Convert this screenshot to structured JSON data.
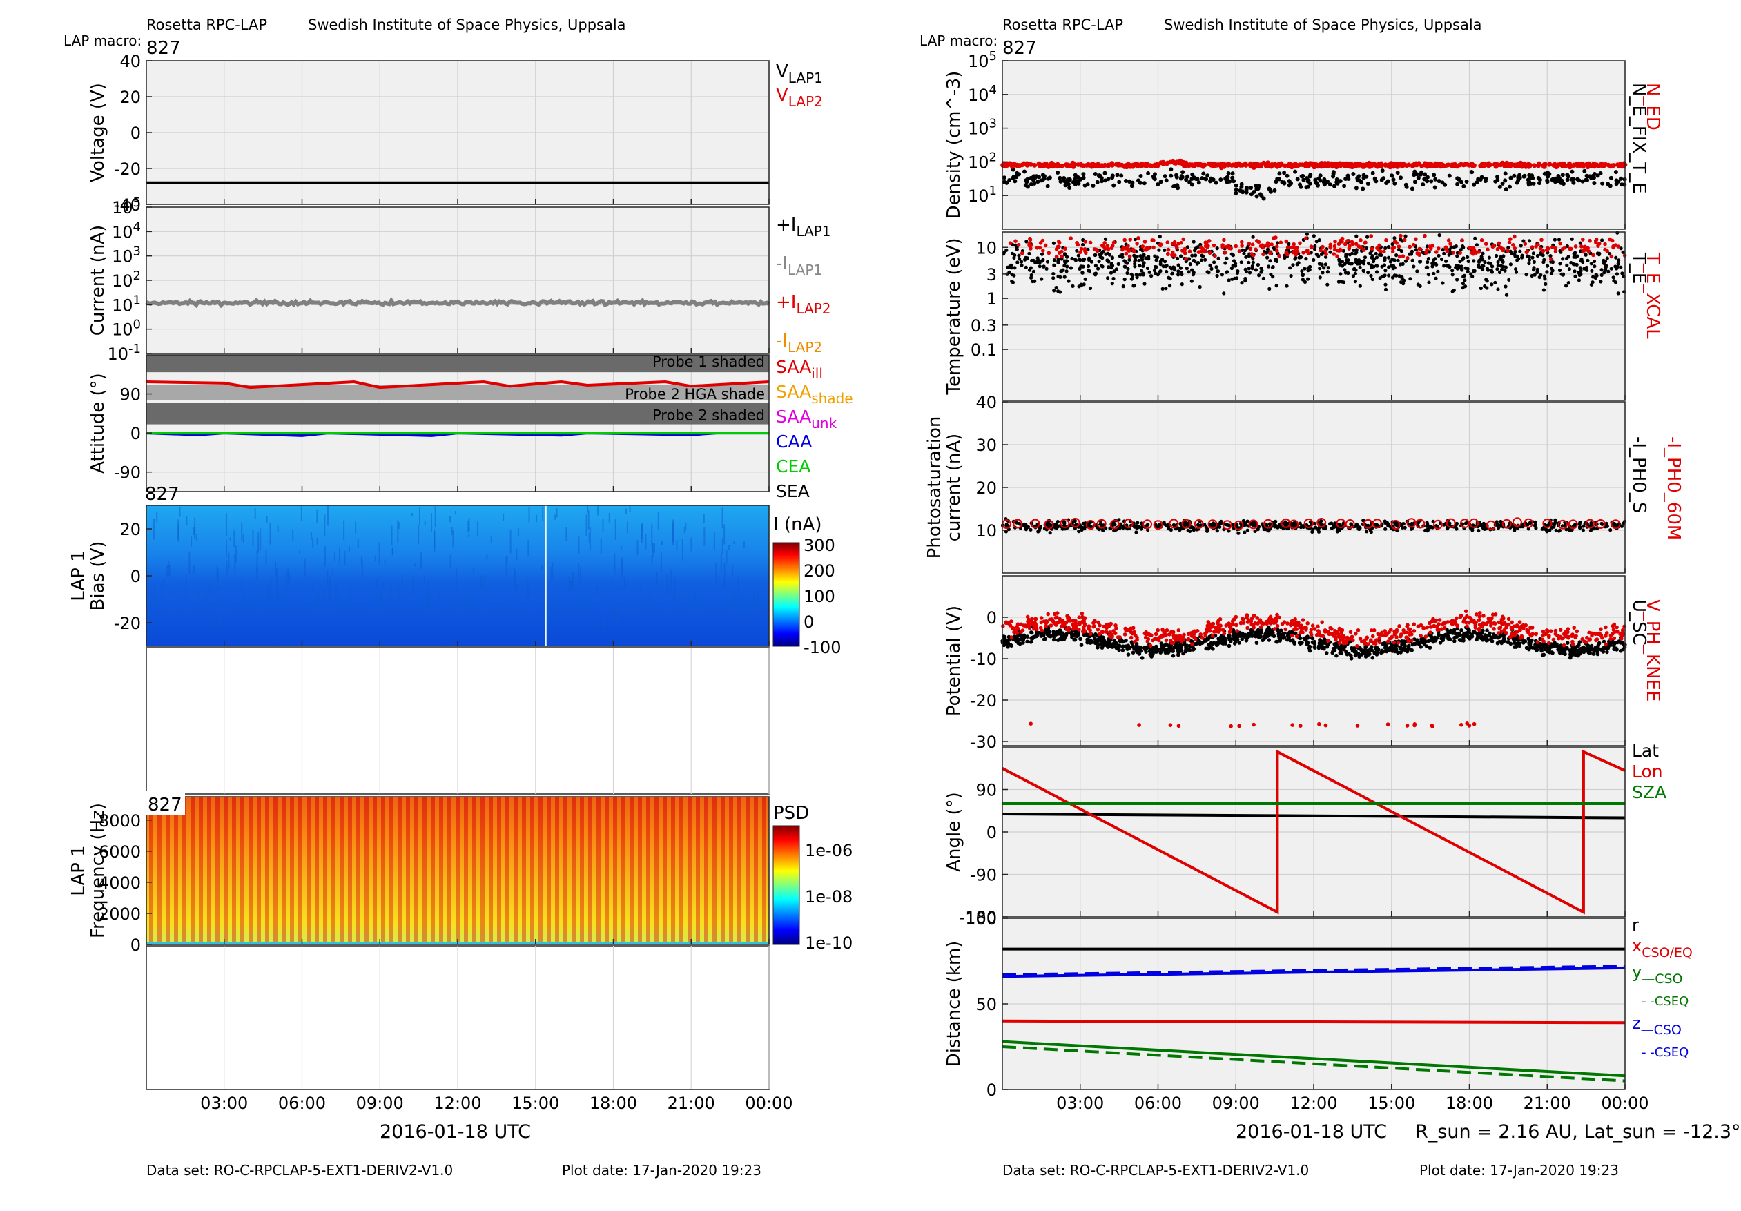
{
  "left": {
    "header": {
      "instrument": "Rosetta RPC-LAP",
      "institute": "Swedish Institute of Space Physics, Uppsala",
      "macro_label": "LAP macro:",
      "macro": "827"
    },
    "footer": {
      "dataset": "Data set: RO-C-RPCLAP-5-EXT1-DERIV2-V1.0",
      "plot_date": "Plot date: 17-Jan-2020 19:23"
    },
    "xlabel": "2016-01-18 UTC",
    "xticks": [
      "03:00",
      "06:00",
      "09:00",
      "12:00",
      "15:00",
      "18:00",
      "21:00",
      "00:00"
    ]
  },
  "right": {
    "header": {
      "instrument": "Rosetta RPC-LAP",
      "institute": "Swedish Institute of Space Physics, Uppsala",
      "macro_label": "LAP macro:",
      "macro": "827"
    },
    "footer": {
      "dataset": "Data set: RO-C-RPCLAP-5-EXT1-DERIV2-V1.0",
      "plot_date": "Plot date: 17-Jan-2020 19:23"
    },
    "xlabel": "2016-01-18 UTC",
    "xticks": [
      "03:00",
      "06:00",
      "09:00",
      "12:00",
      "15:00",
      "18:00",
      "21:00",
      "00:00"
    ],
    "rsun_note": "R_sun = 2.16 AU, Lat_sun = -12.3°"
  },
  "chart_data": [
    {
      "type": "line",
      "ylabel": "Voltage (V)",
      "ylim": [
        -40,
        40
      ],
      "yticks": [
        "40",
        "20",
        "0",
        "-20",
        "-40"
      ],
      "grid": true,
      "legend": [
        {
          "text": "V",
          "sub": "LAP1",
          "color": "#000000"
        },
        {
          "text": "V",
          "sub": "LAP2",
          "color": "#e00000"
        }
      ],
      "series": [
        {
          "name": "V_LAP1",
          "color": "#000000",
          "x_hours": [
            0,
            24
          ],
          "values": [
            -28,
            -28
          ]
        }
      ]
    },
    {
      "type": "line",
      "ylabel": "Current (nA)",
      "yscale": "log",
      "ylim": [
        0.1,
        100000
      ],
      "yticks": [
        "10^5",
        "10^4",
        "10^3",
        "10^2",
        "10^1",
        "10^0",
        "10^-1"
      ],
      "grid": true,
      "legend": [
        {
          "text": "+I",
          "sub": "LAP1",
          "color": "#000000"
        },
        {
          "text": "-I",
          "sub": "LAP1",
          "color": "#888888"
        },
        {
          "text": "+I",
          "sub": "LAP2",
          "color": "#e00000"
        },
        {
          "text": "-I",
          "sub": "LAP2",
          "color": "#f08c00"
        }
      ],
      "series": [
        {
          "name": "-I_LAP1",
          "color": "#808080",
          "x_hours": [
            0,
            6,
            12,
            18,
            24
          ],
          "values": [
            12,
            13,
            12,
            12,
            12
          ]
        }
      ]
    },
    {
      "type": "line",
      "ylabel": "Attitude (°)",
      "ylim": [
        -135,
        180
      ],
      "yticks": [
        "90",
        "0",
        "-90"
      ],
      "grid": true,
      "bands": [
        "Probe 1 shaded",
        "Probe 2 HGA shade",
        "Probe 2 shaded"
      ],
      "legend": [
        {
          "text": "SAA",
          "sub": "ill",
          "color": "#e00000"
        },
        {
          "text": "SAA",
          "sub": "shade",
          "color": "#f0a000"
        },
        {
          "text": "SAA",
          "sub": "unk",
          "color": "#e000e0"
        },
        {
          "text": "CAA",
          "sub": "",
          "color": "#0000e0"
        },
        {
          "text": "CEA",
          "sub": "",
          "color": "#00cc00"
        },
        {
          "text": "SEA",
          "sub": "",
          "color": "#000000"
        }
      ],
      "series": [
        {
          "name": "SAA_ill",
          "color": "#e00000",
          "x_hours": [
            0,
            3,
            4,
            8,
            9,
            13,
            14,
            16,
            17,
            20,
            21,
            24
          ],
          "values": [
            118,
            115,
            105,
            118,
            105,
            118,
            108,
            118,
            110,
            118,
            108,
            118
          ]
        },
        {
          "name": "CAA",
          "color": "#0000e0",
          "x_hours": [
            0,
            2,
            3,
            6,
            7,
            11,
            12,
            16,
            17,
            21,
            22,
            24
          ],
          "values": [
            0,
            -4,
            0,
            -6,
            0,
            -6,
            0,
            -5,
            0,
            -4,
            0,
            0
          ]
        },
        {
          "name": "CEA",
          "color": "#00cc00",
          "x_hours": [
            0,
            24
          ],
          "values": [
            0,
            0
          ]
        }
      ]
    },
    {
      "type": "heatmap",
      "ylabel": "LAP 1 Bias (V)",
      "ylim": [
        -30,
        30
      ],
      "yticks": [
        "20",
        "0",
        "-20"
      ],
      "colorbar": {
        "label": "I (nA)",
        "ticks": [
          "300",
          "200",
          "100",
          "0",
          "-100"
        ]
      }
    },
    {
      "type": "heatmap",
      "ylabel": "LAP 1 Frequency (Hz)",
      "ylim": [
        0,
        9500
      ],
      "yticks": [
        "8000",
        "6000",
        "4000",
        "2000",
        "0"
      ],
      "colorbar": {
        "label": "PSD",
        "ticks": [
          "1e-06",
          "1e-08",
          "1e-10"
        ]
      }
    },
    {
      "type": "scatter",
      "ylabel": "Density (cm^-3)",
      "yscale": "log",
      "ylim": [
        1,
        100000
      ],
      "yticks": [
        "10^5",
        "10^4",
        "10^3",
        "10^2",
        "10^1"
      ],
      "grid": true,
      "legend": [
        {
          "text": "N_ED",
          "color": "#e00000"
        },
        {
          "text": "N_E_FIX_T_E",
          "color": "#000000"
        }
      ],
      "series": [
        {
          "name": "N_ED",
          "color": "#e00000",
          "y_center": 80
        },
        {
          "name": "N_E_FIX_T_E",
          "color": "#000000",
          "y_center": 30
        }
      ]
    },
    {
      "type": "scatter",
      "ylabel": "Temperature (eV)",
      "yscale": "log",
      "ylim": [
        0.01,
        20
      ],
      "yticks": [
        "10",
        "3",
        "1",
        "0.3",
        "0.1"
      ],
      "grid": true,
      "legend": [
        {
          "text": "T_E_XCAL",
          "color": "#e00000"
        },
        {
          "text": "T_E",
          "color": "#000000"
        }
      ],
      "series": [
        {
          "name": "T_E_XCAL",
          "color": "#e00000",
          "y_center": 10
        },
        {
          "name": "T_E",
          "color": "#000000",
          "y_center": 5
        }
      ]
    },
    {
      "type": "scatter",
      "ylabel": "Photosaturation current (nA)",
      "ylim": [
        0,
        40
      ],
      "yticks": [
        "40",
        "30",
        "20",
        "10"
      ],
      "grid": true,
      "legend": [
        {
          "text": "-I_PH0_60M",
          "color": "#e00000"
        },
        {
          "text": "-I_PH0_S",
          "color": "#000000"
        }
      ],
      "series": [
        {
          "name": "-I_PH0_60M",
          "color": "#e00000",
          "y_center": 11.5
        },
        {
          "name": "-I_PH0_S",
          "color": "#000000",
          "y_center": 11
        }
      ]
    },
    {
      "type": "scatter",
      "ylabel": "Potential (V)",
      "ylim": [
        -31,
        10
      ],
      "yticks": [
        "0",
        "-10",
        "-20",
        "-30"
      ],
      "grid": true,
      "legend": [
        {
          "text": "V_PH_KNEE",
          "color": "#e00000"
        },
        {
          "text": "U_SC",
          "color": "#000000"
        }
      ],
      "series": [
        {
          "name": "V_PH_KNEE",
          "color": "#e00000",
          "y_center": -2
        },
        {
          "name": "U_SC",
          "color": "#000000",
          "y_center": -5
        }
      ]
    },
    {
      "type": "line",
      "ylabel": "Angle (°)",
      "ylim": [
        -180,
        180
      ],
      "yticks": [
        "90",
        "0",
        "-90",
        "-180"
      ],
      "grid": true,
      "legend": [
        {
          "text": "Lat",
          "color": "#000000"
        },
        {
          "text": "Lon",
          "color": "#e00000"
        },
        {
          "text": "SZA",
          "color": "#007700"
        }
      ],
      "series": [
        {
          "name": "Lat",
          "color": "#000000",
          "x_hours": [
            0,
            24
          ],
          "values": [
            38,
            30
          ]
        },
        {
          "name": "Lon",
          "color": "#e00000",
          "x_hours": [
            0,
            10.6,
            10.6,
            22.4,
            22.4,
            24
          ],
          "values": [
            135,
            -170,
            170,
            -170,
            170,
            130
          ]
        },
        {
          "name": "SZA",
          "color": "#007700",
          "x_hours": [
            0,
            24
          ],
          "values": [
            60,
            60
          ]
        }
      ]
    },
    {
      "type": "line",
      "ylabel": "Distance (km)",
      "ylim": [
        0,
        100
      ],
      "yticks": [
        "100",
        "50",
        "0"
      ],
      "grid": true,
      "legend": [
        {
          "text": "r",
          "color": "#000000"
        },
        {
          "text": "x",
          "sub": "CSO/EQ",
          "color": "#e00000"
        },
        {
          "text": "y",
          "sub": "—CSO",
          "color": "#007700"
        },
        {
          "text": "- -CSEQ",
          "color": "#007700"
        },
        {
          "text": "z",
          "sub": "—CSO",
          "color": "#0000e0"
        },
        {
          "text": "- -CSEQ",
          "color": "#0000e0"
        }
      ],
      "series": [
        {
          "name": "r",
          "color": "#000000",
          "x_hours": [
            0,
            24
          ],
          "values": [
            82,
            82
          ]
        },
        {
          "name": "x",
          "color": "#e00000",
          "x_hours": [
            0,
            24
          ],
          "values": [
            40,
            39
          ]
        },
        {
          "name": "y CSO",
          "color": "#007700",
          "x_hours": [
            0,
            24
          ],
          "values": [
            28,
            8
          ]
        },
        {
          "name": "y CSEQ",
          "color": "#007700",
          "dashed": true,
          "x_hours": [
            0,
            24
          ],
          "values": [
            25,
            5
          ]
        },
        {
          "name": "z CSO",
          "color": "#0000e0",
          "x_hours": [
            0,
            24
          ],
          "values": [
            66,
            71
          ]
        },
        {
          "name": "z CSEQ",
          "color": "#0000e0",
          "dashed": true,
          "x_hours": [
            0,
            24
          ],
          "values": [
            67,
            72
          ]
        }
      ]
    }
  ]
}
